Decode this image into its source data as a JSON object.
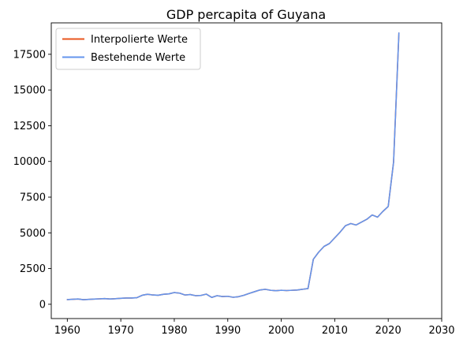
{
  "chart_data": {
    "type": "line",
    "title": "GDP percapita of Guyana",
    "xlabel": "",
    "ylabel": "",
    "xlim": [
      1957,
      2030
    ],
    "ylim": [
      -1000,
      19700
    ],
    "xticks": [
      1960,
      1970,
      1980,
      1990,
      2000,
      2010,
      2020,
      2030
    ],
    "yticks": [
      0,
      2500,
      5000,
      7500,
      10000,
      12500,
      15000,
      17500
    ],
    "grid": false,
    "legend_placement": "top-left",
    "series": [
      {
        "name": "Interpolierte Werte",
        "color": "#e8541c",
        "x": [
          1960,
          1961,
          1962,
          1963,
          1964,
          1965,
          1966,
          1967,
          1968,
          1969,
          1970,
          1971,
          1972,
          1973,
          1974,
          1975,
          1976,
          1977,
          1978,
          1979,
          1980,
          1981,
          1982,
          1983,
          1984,
          1985,
          1986,
          1987,
          1988,
          1989,
          1990,
          1991,
          1992,
          1993,
          1994,
          1995,
          1996,
          1997,
          1998,
          1999,
          2000,
          2001,
          2002,
          2003,
          2004,
          2005,
          2006,
          2007,
          2008,
          2009,
          2010,
          2011,
          2012,
          2013,
          2014,
          2015,
          2016,
          2017,
          2018,
          2019,
          2020,
          2021,
          2022
        ],
        "values": [
          330,
          350,
          370,
          320,
          340,
          360,
          380,
          400,
          370,
          390,
          420,
          440,
          440,
          460,
          630,
          700,
          650,
          630,
          700,
          730,
          820,
          780,
          650,
          680,
          600,
          620,
          710,
          480,
          600,
          540,
          560,
          490,
          530,
          630,
          760,
          880,
          1000,
          1050,
          980,
          950,
          980,
          960,
          980,
          1000,
          1050,
          1100,
          3150,
          3650,
          4050,
          4250,
          4650,
          5050,
          5500,
          5650,
          5550,
          5750,
          5950,
          6250,
          6100,
          6500,
          6850,
          9950,
          18990
        ]
      },
      {
        "name": "Bestehende Werte",
        "color": "#6495ed",
        "x": [
          1960,
          1961,
          1962,
          1963,
          1964,
          1965,
          1966,
          1967,
          1968,
          1969,
          1970,
          1971,
          1972,
          1973,
          1974,
          1975,
          1976,
          1977,
          1978,
          1979,
          1980,
          1981,
          1982,
          1983,
          1984,
          1985,
          1986,
          1987,
          1988,
          1989,
          1990,
          1991,
          1992,
          1993,
          1994,
          1995,
          1996,
          1997,
          1998,
          1999,
          2000,
          2001,
          2002,
          2003,
          2004,
          2005,
          2006,
          2007,
          2008,
          2009,
          2010,
          2011,
          2012,
          2013,
          2014,
          2015,
          2016,
          2017,
          2018,
          2019,
          2020,
          2021,
          2022
        ],
        "values": [
          330,
          350,
          370,
          320,
          340,
          360,
          380,
          400,
          370,
          390,
          420,
          440,
          440,
          460,
          630,
          700,
          650,
          630,
          700,
          730,
          820,
          780,
          650,
          680,
          600,
          620,
          710,
          480,
          600,
          540,
          560,
          490,
          530,
          630,
          760,
          880,
          1000,
          1050,
          980,
          950,
          980,
          960,
          980,
          1000,
          1050,
          1100,
          3150,
          3650,
          4050,
          4250,
          4650,
          5050,
          5500,
          5650,
          5550,
          5750,
          5950,
          6250,
          6100,
          6500,
          6850,
          9950,
          18990
        ]
      }
    ]
  }
}
